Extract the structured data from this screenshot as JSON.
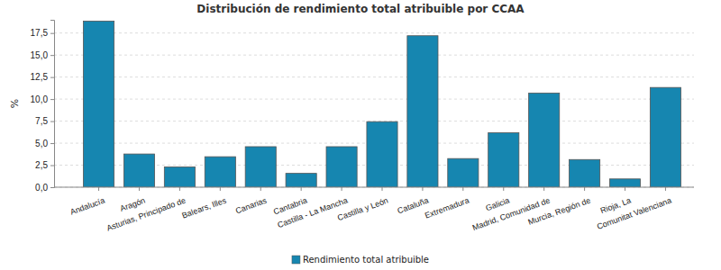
{
  "chart_data": {
    "type": "bar",
    "title": "Distribución de rendimiento total atribuible por CCAA",
    "y_label": "%",
    "categories": [
      "Andalucía",
      "Aragón",
      "Asturias, Principado de",
      "Balears, Illes",
      "Canarias",
      "Cantabria",
      "Castilla - La Mancha",
      "Castilla y León",
      "Cataluña",
      "Extremadura",
      "Galicia",
      "Madrid, Comunidad de",
      "Murcia, Región de",
      "Rioja, La",
      "Comunitat Valenciana"
    ],
    "series": [
      {
        "name": "Rendimiento total atribuible",
        "color": "#1686b0",
        "values": [
          18.85,
          3.77,
          2.3,
          3.46,
          4.6,
          1.57,
          4.6,
          7.44,
          17.19,
          3.25,
          6.18,
          10.69,
          3.14,
          0.94,
          11.32
        ]
      }
    ],
    "ylim": [
      0,
      19
    ],
    "yticks": [
      {
        "value": 0,
        "label": "0,0"
      },
      {
        "value": 2.5,
        "label": "2,5"
      },
      {
        "value": 5,
        "label": "5,0"
      },
      {
        "value": 7.5,
        "label": "7,5"
      },
      {
        "value": 10,
        "label": "10,0"
      },
      {
        "value": 12.5,
        "label": "12,5"
      },
      {
        "value": 15,
        "label": "15,0"
      },
      {
        "value": 17.5,
        "label": "17,5"
      }
    ],
    "grid": true,
    "legend": "bottom"
  }
}
